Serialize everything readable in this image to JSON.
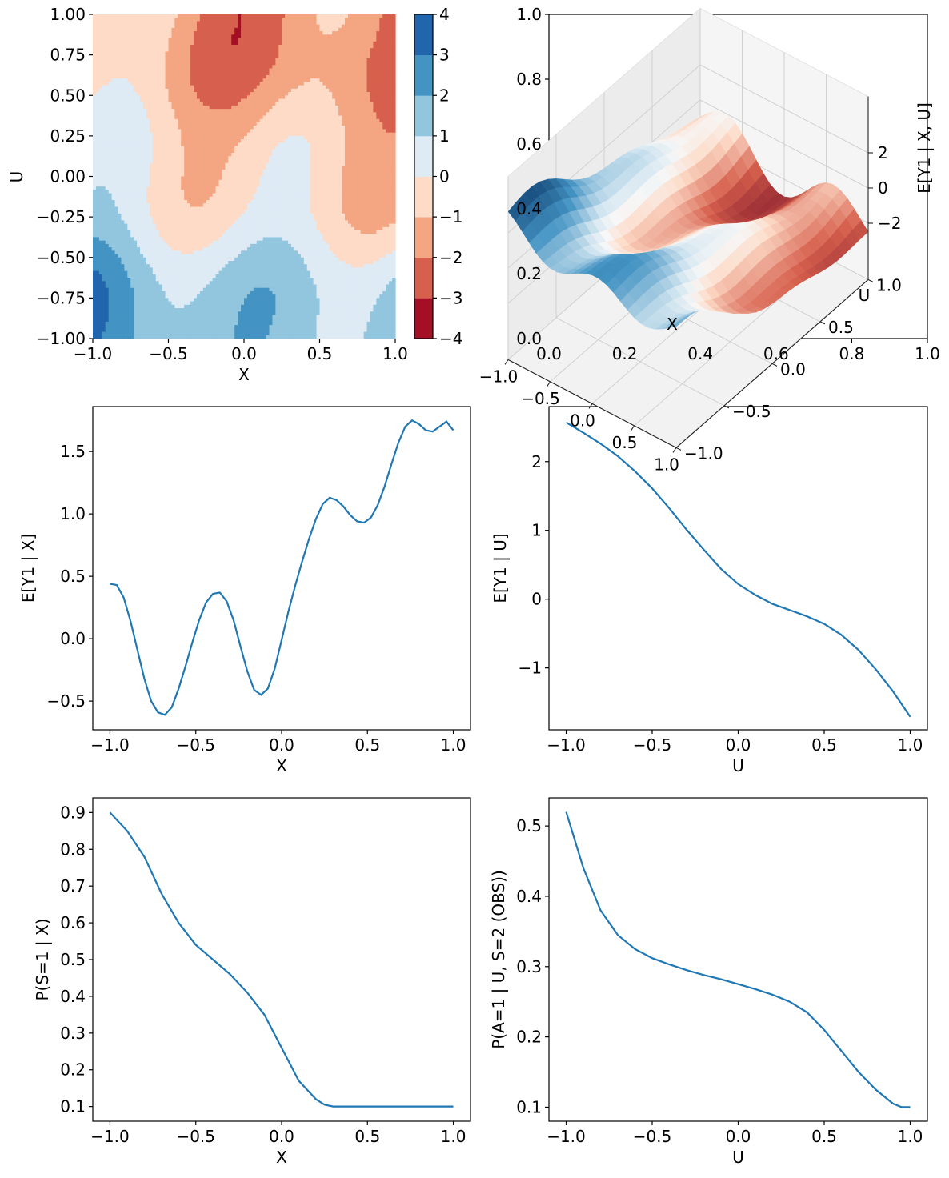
{
  "chart_data": [
    {
      "type": "heatmap",
      "subtype": "filled-contour",
      "xlabel": "X",
      "ylabel": "U",
      "xlim": [
        -1.0,
        1.0
      ],
      "ylim": [
        -1.0,
        1.0
      ],
      "x_ticks": [
        "−1.0",
        "−0.5",
        "0.0",
        "0.5",
        "1.0"
      ],
      "y_ticks": [
        "−1.00",
        "−0.75",
        "−0.50",
        "−0.25",
        "0.00",
        "0.25",
        "0.50",
        "0.75",
        "1.00"
      ],
      "colorbar": {
        "levels": [
          -4,
          -3,
          -2,
          -1,
          0,
          1,
          2,
          3,
          4
        ],
        "tick_labels": [
          "−4",
          "−3",
          "−2",
          "−1",
          "0",
          "1",
          "2",
          "3",
          "4"
        ],
        "colors": [
          "#a50f25",
          "#d6604d",
          "#f4a582",
          "#fddbc7",
          "#deebf5",
          "#92c5de",
          "#4393c3",
          "#2166ac"
        ]
      },
      "grid": false
    },
    {
      "type": "surface",
      "xlabel": "X",
      "ylabel": "U",
      "zlabel": "E[Y1 | X, U]",
      "x_ticks": [
        "−1.0",
        "−0.5",
        "0.0",
        "0.5",
        "1.0"
      ],
      "y_ticks": [
        "−1.0",
        "−0.5",
        "0.0",
        "0.5",
        "1.0"
      ],
      "z_ticks": [
        "−2",
        "0",
        "2"
      ],
      "outer_x_ticks": [
        "0.0",
        "0.2",
        "0.4",
        "0.6",
        "0.8",
        "1.0"
      ],
      "outer_y_ticks": [
        "0.0",
        "0.2",
        "0.4",
        "0.6",
        "0.8",
        "1.0"
      ],
      "grid": true
    },
    {
      "type": "line",
      "xlabel": "X",
      "ylabel": "E[Y1 | X]",
      "xlim": [
        -1.1,
        1.1
      ],
      "ylim": [
        -0.73,
        1.86
      ],
      "x_ticks": [
        "−1.0",
        "−0.5",
        "0.0",
        "0.5",
        "1.0"
      ],
      "y_ticks": [
        "−0.5",
        "0.0",
        "0.5",
        "1.0",
        "1.5"
      ],
      "x": [
        -1.0,
        -0.96,
        -0.92,
        -0.88,
        -0.84,
        -0.8,
        -0.76,
        -0.72,
        -0.68,
        -0.64,
        -0.6,
        -0.56,
        -0.52,
        -0.48,
        -0.44,
        -0.4,
        -0.36,
        -0.32,
        -0.28,
        -0.24,
        -0.2,
        -0.16,
        -0.12,
        -0.08,
        -0.04,
        0.0,
        0.04,
        0.08,
        0.12,
        0.16,
        0.2,
        0.24,
        0.28,
        0.32,
        0.36,
        0.4,
        0.44,
        0.48,
        0.52,
        0.56,
        0.6,
        0.64,
        0.68,
        0.72,
        0.76,
        0.8,
        0.84,
        0.88,
        0.92,
        0.96,
        1.0
      ],
      "y": [
        0.44,
        0.43,
        0.33,
        0.14,
        -0.09,
        -0.32,
        -0.5,
        -0.59,
        -0.61,
        -0.55,
        -0.4,
        -0.22,
        -0.03,
        0.15,
        0.29,
        0.36,
        0.37,
        0.3,
        0.15,
        -0.06,
        -0.26,
        -0.41,
        -0.45,
        -0.4,
        -0.24,
        -0.01,
        0.22,
        0.43,
        0.62,
        0.8,
        0.96,
        1.08,
        1.13,
        1.11,
        1.06,
        0.99,
        0.94,
        0.93,
        0.97,
        1.07,
        1.22,
        1.4,
        1.57,
        1.7,
        1.75,
        1.72,
        1.67,
        1.66,
        1.7,
        1.74,
        1.67
      ],
      "grid": false
    },
    {
      "type": "line",
      "xlabel": "U",
      "ylabel": "E[Y1 | U]",
      "xlim": [
        -1.1,
        1.1
      ],
      "ylim": [
        -1.9,
        2.8
      ],
      "x_ticks": [
        "−1.0",
        "−0.5",
        "0.0",
        "0.5",
        "1.0"
      ],
      "y_ticks": [
        "−1",
        "0",
        "1",
        "2"
      ],
      "x": [
        -1.0,
        -0.9,
        -0.8,
        -0.7,
        -0.6,
        -0.5,
        -0.4,
        -0.3,
        -0.2,
        -0.1,
        0.0,
        0.1,
        0.2,
        0.3,
        0.4,
        0.5,
        0.6,
        0.7,
        0.8,
        0.9,
        1.0
      ],
      "y": [
        2.57,
        2.42,
        2.26,
        2.08,
        1.86,
        1.61,
        1.32,
        1.01,
        0.72,
        0.44,
        0.22,
        0.06,
        -0.07,
        -0.16,
        -0.25,
        -0.36,
        -0.52,
        -0.74,
        -1.02,
        -1.34,
        -1.71
      ],
      "grid": false
    },
    {
      "type": "line",
      "xlabel": "X",
      "ylabel": "P(S=1 | X)",
      "xlim": [
        -1.1,
        1.1
      ],
      "ylim": [
        0.06,
        0.94
      ],
      "x_ticks": [
        "−1.0",
        "−0.5",
        "0.0",
        "0.5",
        "1.0"
      ],
      "y_ticks": [
        "0.1",
        "0.2",
        "0.3",
        "0.4",
        "0.5",
        "0.6",
        "0.7",
        "0.8",
        "0.9"
      ],
      "x": [
        -1.0,
        -0.9,
        -0.8,
        -0.7,
        -0.6,
        -0.5,
        -0.4,
        -0.3,
        -0.2,
        -0.1,
        0.0,
        0.1,
        0.2,
        0.25,
        0.3,
        0.4,
        0.5,
        0.6,
        0.7,
        0.8,
        0.9,
        1.0
      ],
      "y": [
        0.9,
        0.85,
        0.78,
        0.68,
        0.6,
        0.54,
        0.5,
        0.46,
        0.41,
        0.35,
        0.26,
        0.17,
        0.12,
        0.105,
        0.1,
        0.1,
        0.1,
        0.1,
        0.1,
        0.1,
        0.1,
        0.1
      ],
      "grid": false
    },
    {
      "type": "line",
      "xlabel": "U",
      "ylabel": "P(A=1 | U, S=2 (OBS))",
      "xlim": [
        -1.1,
        1.1
      ],
      "ylim": [
        0.08,
        0.54
      ],
      "x_ticks": [
        "−1.0",
        "−0.5",
        "0.0",
        "0.5",
        "1.0"
      ],
      "y_ticks": [
        "0.1",
        "0.2",
        "0.3",
        "0.4",
        "0.5"
      ],
      "x": [
        -1.0,
        -0.9,
        -0.8,
        -0.7,
        -0.6,
        -0.5,
        -0.4,
        -0.3,
        -0.2,
        -0.1,
        0.0,
        0.1,
        0.2,
        0.3,
        0.4,
        0.5,
        0.6,
        0.7,
        0.8,
        0.9,
        0.95,
        1.0
      ],
      "y": [
        0.52,
        0.44,
        0.38,
        0.345,
        0.325,
        0.312,
        0.303,
        0.295,
        0.288,
        0.282,
        0.275,
        0.268,
        0.26,
        0.25,
        0.235,
        0.21,
        0.18,
        0.15,
        0.125,
        0.105,
        0.1,
        0.1
      ],
      "grid": false
    }
  ]
}
